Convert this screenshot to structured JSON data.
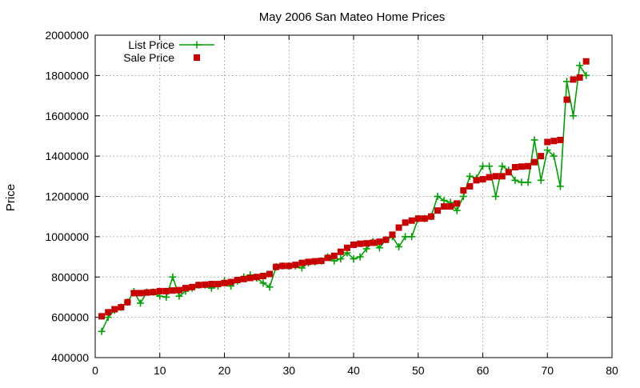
{
  "chart_data": {
    "type": "line",
    "title": "May 2006 San Mateo Home Prices",
    "xlabel": "",
    "ylabel": "Price",
    "xlim": [
      0,
      80
    ],
    "ylim": [
      400000,
      2000000
    ],
    "xticks": [
      "0",
      "10",
      "20",
      "30",
      "40",
      "50",
      "60",
      "70",
      "80"
    ],
    "yticks": [
      "400000",
      "600000",
      "800000",
      "1000000",
      "1200000",
      "1400000",
      "1600000",
      "1800000",
      "2000000"
    ],
    "grid": true,
    "legend_position": "top-left",
    "series": [
      {
        "name": "List Price",
        "style": "line-plus",
        "color": "#00a000",
        "x": [
          1,
          2,
          3,
          4,
          5,
          6,
          7,
          8,
          9,
          10,
          11,
          12,
          13,
          14,
          15,
          16,
          17,
          18,
          19,
          20,
          21,
          22,
          23,
          24,
          25,
          26,
          27,
          28,
          29,
          30,
          31,
          32,
          33,
          34,
          35,
          36,
          37,
          38,
          39,
          40,
          41,
          42,
          43,
          44,
          45,
          46,
          47,
          48,
          49,
          50,
          51,
          52,
          53,
          54,
          55,
          56,
          57,
          58,
          59,
          60,
          61,
          62,
          63,
          64,
          65,
          66,
          67,
          68,
          69,
          70,
          71,
          72,
          73,
          74,
          75,
          76
        ],
        "values": [
          530000,
          600000,
          635000,
          650000,
          675000,
          728000,
          670000,
          725000,
          725000,
          705000,
          700000,
          800000,
          705000,
          730000,
          745000,
          760000,
          760000,
          745000,
          755000,
          780000,
          755000,
          780000,
          800000,
          810000,
          795000,
          770000,
          750000,
          850000,
          855000,
          855000,
          855000,
          845000,
          870000,
          875000,
          880000,
          900000,
          880000,
          890000,
          920000,
          890000,
          900000,
          940000,
          975000,
          945000,
          985000,
          1000000,
          950000,
          1000000,
          1000000,
          1090000,
          1090000,
          1100000,
          1200000,
          1180000,
          1170000,
          1130000,
          1200000,
          1300000,
          1290000,
          1350000,
          1350000,
          1200000,
          1350000,
          1330000,
          1280000,
          1270000,
          1270000,
          1480000,
          1280000,
          1430000,
          1400000,
          1250000,
          1770000,
          1600000,
          1850000,
          1800000
        ]
      },
      {
        "name": "Sale Price",
        "style": "square-points",
        "color": "#c80000",
        "x": [
          1,
          2,
          3,
          4,
          5,
          6,
          7,
          8,
          9,
          10,
          11,
          12,
          13,
          14,
          15,
          16,
          17,
          18,
          19,
          20,
          21,
          22,
          23,
          24,
          25,
          26,
          27,
          28,
          29,
          30,
          31,
          32,
          33,
          34,
          35,
          36,
          37,
          38,
          39,
          40,
          41,
          42,
          43,
          44,
          45,
          46,
          47,
          48,
          49,
          50,
          51,
          52,
          53,
          54,
          55,
          56,
          57,
          58,
          59,
          60,
          61,
          62,
          63,
          64,
          65,
          66,
          67,
          68,
          69,
          70,
          71,
          72,
          73,
          74,
          75,
          76
        ],
        "values": [
          605000,
          625000,
          640000,
          650000,
          675000,
          720000,
          720000,
          723000,
          725000,
          730000,
          730000,
          733000,
          735000,
          745000,
          750000,
          760000,
          762000,
          765000,
          765000,
          770000,
          775000,
          785000,
          790000,
          795000,
          800000,
          805000,
          815000,
          850000,
          855000,
          855000,
          860000,
          870000,
          875000,
          878000,
          880000,
          895000,
          905000,
          925000,
          945000,
          960000,
          965000,
          967000,
          970000,
          975000,
          985000,
          1010000,
          1045000,
          1070000,
          1080000,
          1090000,
          1090000,
          1100000,
          1130000,
          1150000,
          1150000,
          1165000,
          1230000,
          1250000,
          1280000,
          1285000,
          1295000,
          1300000,
          1300000,
          1320000,
          1345000,
          1348000,
          1350000,
          1370000,
          1400000,
          1470000,
          1475000,
          1480000,
          1680000,
          1780000,
          1790000,
          1870000
        ]
      }
    ]
  }
}
